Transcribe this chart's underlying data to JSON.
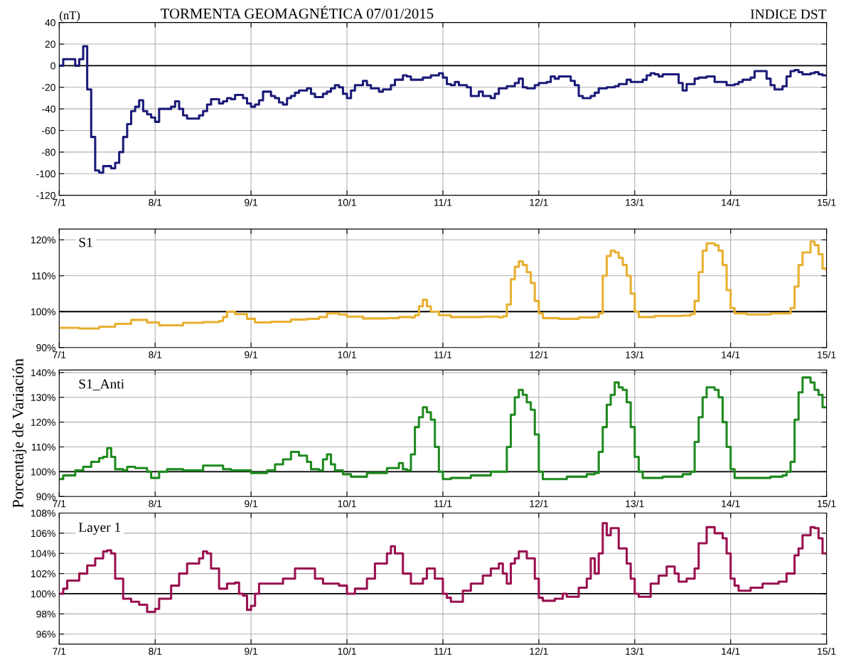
{
  "chart_data": [
    {
      "type": "step",
      "title": "TORMENTA GEOMAGNÉTICA 07/01/2015",
      "subtitle": "INDICE DST",
      "ylabel": "(nT)",
      "grid": true,
      "xlim": [
        "2015-01-07T00:00",
        "2015-01-15T00:00"
      ],
      "ylim": [
        -120,
        40
      ],
      "xticks": [
        {
          "value": "2015-01-07",
          "label": "7/1"
        },
        {
          "value": "2015-01-08",
          "label": "8/1"
        },
        {
          "value": "2015-01-09",
          "label": "9/1"
        },
        {
          "value": "2015-01-10",
          "label": "10/1"
        },
        {
          "value": "2015-01-11",
          "label": "11/1"
        },
        {
          "value": "2015-01-12",
          "label": "12/1"
        },
        {
          "value": "2015-01-13",
          "label": "13/1"
        },
        {
          "value": "2015-01-14",
          "label": "14/1"
        },
        {
          "value": "2015-01-15",
          "label": "15/1"
        }
      ],
      "yticks": [
        -120,
        -100,
        -80,
        -60,
        -40,
        -20,
        0,
        20,
        40
      ],
      "ref_lines": [
        {
          "axis": "y",
          "value": 0,
          "color": "#000000"
        }
      ],
      "series": [
        {
          "color": "#1a1a78",
          "x": [
            "2015-01-07T00:00",
            "2015-01-07T01:00",
            "2015-01-07T04:00",
            "2015-01-07T05:00",
            "2015-01-07T06:00",
            "2015-01-07T07:00",
            "2015-01-07T08:00",
            "2015-01-07T09:00",
            "2015-01-07T10:00",
            "2015-01-07T11:00",
            "2015-01-07T13:00",
            "2015-01-07T14:00",
            "2015-01-07T15:00",
            "2015-01-07T16:00",
            "2015-01-07T17:00",
            "2015-01-07T18:00",
            "2015-01-07T19:00",
            "2015-01-07T20:00",
            "2015-01-07T21:00",
            "2015-01-07T22:00",
            "2015-01-07T23:00",
            "2015-01-08T00:00",
            "2015-01-08T01:00",
            "2015-01-08T04:00",
            "2015-01-08T05:00",
            "2015-01-08T06:00",
            "2015-01-08T07:00",
            "2015-01-08T08:00",
            "2015-01-08T11:00",
            "2015-01-08T12:00",
            "2015-01-08T13:00",
            "2015-01-08T14:00",
            "2015-01-08T16:00",
            "2015-01-08T17:00",
            "2015-01-08T18:00",
            "2015-01-08T19:00",
            "2015-01-08T20:00",
            "2015-01-08T22:00",
            "2015-01-08T23:00",
            "2015-01-09T00:00",
            "2015-01-09T01:00",
            "2015-01-09T02:00",
            "2015-01-09T03:00",
            "2015-01-09T05:00",
            "2015-01-09T06:00",
            "2015-01-09T07:00",
            "2015-01-09T08:00",
            "2015-01-09T09:00",
            "2015-01-09T10:00",
            "2015-01-09T11:00",
            "2015-01-09T12:00",
            "2015-01-09T14:00",
            "2015-01-09T15:00",
            "2015-01-09T16:00",
            "2015-01-09T18:00",
            "2015-01-09T19:00",
            "2015-01-09T20:00",
            "2015-01-09T21:00",
            "2015-01-09T22:00",
            "2015-01-09T23:00",
            "2015-01-10T00:00",
            "2015-01-10T01:00",
            "2015-01-10T02:00",
            "2015-01-10T04:00",
            "2015-01-10T05:00",
            "2015-01-10T06:00",
            "2015-01-10T08:00",
            "2015-01-10T09:00",
            "2015-01-10T11:00",
            "2015-01-10T12:00",
            "2015-01-10T14:00",
            "2015-01-10T15:00",
            "2015-01-10T16:00",
            "2015-01-10T19:00",
            "2015-01-10T21:00",
            "2015-01-10T23:00",
            "2015-01-11T00:00",
            "2015-01-11T01:00",
            "2015-01-11T02:00",
            "2015-01-11T03:00",
            "2015-01-11T04:00",
            "2015-01-11T06:00",
            "2015-01-11T07:00",
            "2015-01-11T09:00",
            "2015-01-11T10:00",
            "2015-01-11T12:00",
            "2015-01-11T13:00",
            "2015-01-11T14:00",
            "2015-01-11T16:00",
            "2015-01-11T18:00",
            "2015-01-11T19:00",
            "2015-01-11T20:00",
            "2015-01-11T21:00",
            "2015-01-11T23:00",
            "2015-01-12T00:00",
            "2015-01-12T02:00",
            "2015-01-12T03:00",
            "2015-01-12T04:00",
            "2015-01-12T05:00",
            "2015-01-12T08:00",
            "2015-01-12T09:00",
            "2015-01-12T10:00",
            "2015-01-12T11:00",
            "2015-01-12T13:00",
            "2015-01-12T14:00",
            "2015-01-12T15:00",
            "2015-01-12T17:00",
            "2015-01-12T19:00",
            "2015-01-12T20:00",
            "2015-01-12T22:00",
            "2015-01-12T23:00",
            "2015-01-13T02:00",
            "2015-01-13T03:00",
            "2015-01-13T04:00",
            "2015-01-13T05:00",
            "2015-01-13T06:00",
            "2015-01-13T07:00",
            "2015-01-13T10:00",
            "2015-01-13T11:00",
            "2015-01-13T12:00",
            "2015-01-13T13:00",
            "2015-01-13T15:00",
            "2015-01-13T16:00",
            "2015-01-13T17:00",
            "2015-01-13T18:00",
            "2015-01-13T20:00",
            "2015-01-13T22:00",
            "2015-01-13T23:00",
            "2015-01-14T01:00",
            "2015-01-14T02:00",
            "2015-01-14T03:00",
            "2015-01-14T05:00",
            "2015-01-14T06:00",
            "2015-01-14T08:00",
            "2015-01-14T09:00",
            "2015-01-14T10:00",
            "2015-01-14T11:00",
            "2015-01-14T13:00",
            "2015-01-14T14:00",
            "2015-01-14T15:00",
            "2015-01-14T16:00",
            "2015-01-14T17:00",
            "2015-01-14T18:00",
            "2015-01-14T20:00",
            "2015-01-14T21:00",
            "2015-01-14T22:00",
            "2015-01-14T23:00",
            "2015-01-15T00:00"
          ],
          "values": [
            0,
            6,
            0,
            6,
            18,
            -22,
            -66,
            -97,
            -99,
            -93,
            -95,
            -90,
            -80,
            -66,
            -54,
            -42,
            -38,
            -32,
            -42,
            -45,
            -48,
            -52,
            -40,
            -38,
            -33,
            -40,
            -46,
            -49,
            -46,
            -42,
            -36,
            -31,
            -35,
            -33,
            -30,
            -31,
            -27,
            -30,
            -35,
            -38,
            -36,
            -32,
            -24,
            -28,
            -30,
            -34,
            -36,
            -30,
            -28,
            -25,
            -23,
            -21,
            -26,
            -29,
            -26,
            -24,
            -21,
            -18,
            -20,
            -26,
            -30,
            -23,
            -18,
            -14,
            -18,
            -21,
            -24,
            -22,
            -18,
            -13,
            -9,
            -10,
            -13,
            -11,
            -9,
            -7,
            -11,
            -17,
            -18,
            -15,
            -18,
            -20,
            -28,
            -24,
            -28,
            -30,
            -26,
            -21,
            -19,
            -16,
            -12,
            -20,
            -21,
            -18,
            -16,
            -15,
            -10,
            -12,
            -10,
            -14,
            -18,
            -28,
            -30,
            -28,
            -25,
            -21,
            -20,
            -19,
            -17,
            -13,
            -15,
            -13,
            -9,
            -7,
            -8,
            -10,
            -8,
            -8,
            -16,
            -23,
            -17,
            -12,
            -11,
            -11,
            -10,
            -15,
            -15,
            -18,
            -17,
            -15,
            -13,
            -11,
            -5,
            -5,
            -12,
            -18,
            -22,
            -19,
            -10,
            -5,
            -4,
            -6,
            -8,
            -7,
            -6,
            -8,
            -9,
            -9
          ]
        }
      ]
    },
    {
      "type": "step",
      "title": "S1",
      "grid": true,
      "xlim": [
        "2015-01-07T00:00",
        "2015-01-15T00:00"
      ],
      "ylim": [
        90,
        123
      ],
      "xticks": [
        {
          "value": "2015-01-07",
          "label": "7/1"
        },
        {
          "value": "2015-01-08",
          "label": "8/1"
        },
        {
          "value": "2015-01-09",
          "label": "9/1"
        },
        {
          "value": "2015-01-10",
          "label": "10/1"
        },
        {
          "value": "2015-01-11",
          "label": "11/1"
        },
        {
          "value": "2015-01-12",
          "label": "12/1"
        },
        {
          "value": "2015-01-13",
          "label": "13/1"
        },
        {
          "value": "2015-01-14",
          "label": "14/1"
        },
        {
          "value": "2015-01-15",
          "label": "15/1"
        }
      ],
      "yticks": [
        {
          "value": 90,
          "label": "90%"
        },
        {
          "value": 100,
          "label": "100%"
        },
        {
          "value": 110,
          "label": "110%"
        },
        {
          "value": 120,
          "label": "120%"
        }
      ],
      "ref_lines": [
        {
          "axis": "y",
          "value": 100,
          "color": "#000000"
        }
      ],
      "series": [
        {
          "color": "#e8b030",
          "x": [
            "2015-01-07T00:00",
            "2015-01-07T05:00",
            "2015-01-07T10:00",
            "2015-01-07T14:00",
            "2015-01-07T18:00",
            "2015-01-07T22:00",
            "2015-01-08T01:00",
            "2015-01-08T07:00",
            "2015-01-08T12:00",
            "2015-01-08T16:00",
            "2015-01-08T17:00",
            "2015-01-08T18:00",
            "2015-01-08T20:00",
            "2015-01-08T23:00",
            "2015-01-09T01:00",
            "2015-01-09T05:00",
            "2015-01-09T10:00",
            "2015-01-09T14:00",
            "2015-01-09T17:00",
            "2015-01-09T19:00",
            "2015-01-09T22:00",
            "2015-01-10T00:00",
            "2015-01-10T04:00",
            "2015-01-10T10:00",
            "2015-01-10T13:00",
            "2015-01-10T16:00",
            "2015-01-10T17:00",
            "2015-01-10T18:00",
            "2015-01-10T19:00",
            "2015-01-10T20:00",
            "2015-01-10T21:00",
            "2015-01-10T23:00",
            "2015-01-11T02:00",
            "2015-01-11T10:00",
            "2015-01-11T14:00",
            "2015-01-11T15:00",
            "2015-01-11T16:00",
            "2015-01-11T17:00",
            "2015-01-11T18:00",
            "2015-01-11T19:00",
            "2015-01-11T20:00",
            "2015-01-11T21:00",
            "2015-01-11T22:00",
            "2015-01-11T23:00",
            "2015-01-12T00:00",
            "2015-01-12T01:00",
            "2015-01-12T05:00",
            "2015-01-12T10:00",
            "2015-01-12T14:00",
            "2015-01-12T15:00",
            "2015-01-12T16:00",
            "2015-01-12T17:00",
            "2015-01-12T18:00",
            "2015-01-12T19:00",
            "2015-01-12T20:00",
            "2015-01-12T21:00",
            "2015-01-12T22:00",
            "2015-01-12T23:00",
            "2015-01-13T00:00",
            "2015-01-13T01:00",
            "2015-01-13T05:00",
            "2015-01-13T12:00",
            "2015-01-13T14:00",
            "2015-01-13T15:00",
            "2015-01-13T16:00",
            "2015-01-13T17:00",
            "2015-01-13T18:00",
            "2015-01-13T20:00",
            "2015-01-13T21:00",
            "2015-01-13T22:00",
            "2015-01-13T23:00",
            "2015-01-14T00:00",
            "2015-01-14T01:00",
            "2015-01-14T04:00",
            "2015-01-14T10:00",
            "2015-01-14T14:00",
            "2015-01-14T15:00",
            "2015-01-14T16:00",
            "2015-01-14T17:00",
            "2015-01-14T18:00",
            "2015-01-14T20:00",
            "2015-01-14T21:00",
            "2015-01-14T22:00",
            "2015-01-14T23:00",
            "2015-01-15T00:00"
          ],
          "values": [
            95.5,
            95.3,
            95.8,
            96.6,
            97.7,
            97.0,
            96.2,
            96.9,
            97.1,
            97.4,
            98.5,
            100,
            99.3,
            98.0,
            97.0,
            97.2,
            97.8,
            98.0,
            98.5,
            99.5,
            99.2,
            98.6,
            98.1,
            98.2,
            98.5,
            98.4,
            99.0,
            101.5,
            103.3,
            101.5,
            100.0,
            99.0,
            98.5,
            98.6,
            98.4,
            98.7,
            102,
            109,
            112.5,
            114,
            113,
            111,
            108,
            103,
            99.5,
            98.2,
            98.0,
            98.4,
            98.5,
            99.5,
            110,
            115.5,
            117,
            116.5,
            115,
            113,
            110,
            105,
            100,
            98.5,
            98.8,
            98.9,
            99.3,
            103,
            111,
            117,
            119,
            118.5,
            117,
            113,
            106,
            101,
            99.5,
            99.2,
            99.5,
            99.5,
            101,
            107,
            113,
            116.5,
            119.5,
            118.5,
            116,
            112,
            111.5
          ]
        }
      ]
    },
    {
      "type": "step",
      "title": "S1_Anti",
      "ylabel": "Porcentaje de Variación",
      "grid": true,
      "xlim": [
        "2015-01-07T00:00",
        "2015-01-15T00:00"
      ],
      "ylim": [
        90,
        141
      ],
      "xticks": [
        {
          "value": "2015-01-07",
          "label": "7/1"
        },
        {
          "value": "2015-01-08",
          "label": "8/1"
        },
        {
          "value": "2015-01-09",
          "label": "9/1"
        },
        {
          "value": "2015-01-10",
          "label": "10/1"
        },
        {
          "value": "2015-01-11",
          "label": "11/1"
        },
        {
          "value": "2015-01-12",
          "label": "12/1"
        },
        {
          "value": "2015-01-13",
          "label": "13/1"
        },
        {
          "value": "2015-01-14",
          "label": "14/1"
        },
        {
          "value": "2015-01-15",
          "label": "15/1"
        }
      ],
      "yticks": [
        {
          "value": 90,
          "label": "90%"
        },
        {
          "value": 100,
          "label": "100%"
        },
        {
          "value": 110,
          "label": "110%"
        },
        {
          "value": 120,
          "label": "120%"
        },
        {
          "value": 130,
          "label": "130%"
        },
        {
          "value": 140,
          "label": "140%"
        }
      ],
      "ref_lines": [
        {
          "axis": "y",
          "value": 100,
          "color": "#000000"
        }
      ],
      "series": [
        {
          "color": "#1e8a1e",
          "x": [
            "2015-01-07T00:00",
            "2015-01-07T01:00",
            "2015-01-07T04:00",
            "2015-01-07T06:00",
            "2015-01-07T08:00",
            "2015-01-07T10:00",
            "2015-01-07T11:00",
            "2015-01-07T12:00",
            "2015-01-07T13:00",
            "2015-01-07T14:00",
            "2015-01-07T16:00",
            "2015-01-07T17:00",
            "2015-01-07T19:00",
            "2015-01-07T22:00",
            "2015-01-07T23:00",
            "2015-01-08T00:00",
            "2015-01-08T01:00",
            "2015-01-08T03:00",
            "2015-01-08T07:00",
            "2015-01-08T12:00",
            "2015-01-08T14:00",
            "2015-01-08T17:00",
            "2015-01-08T19:00",
            "2015-01-09T00:00",
            "2015-01-09T04:00",
            "2015-01-09T06:00",
            "2015-01-09T08:00",
            "2015-01-09T10:00",
            "2015-01-09T12:00",
            "2015-01-09T14:00",
            "2015-01-09T15:00",
            "2015-01-09T17:00",
            "2015-01-09T18:00",
            "2015-01-09T19:00",
            "2015-01-09T20:00",
            "2015-01-09T21:00",
            "2015-01-09T23:00",
            "2015-01-10T01:00",
            "2015-01-10T05:00",
            "2015-01-10T10:00",
            "2015-01-10T13:00",
            "2015-01-10T14:00",
            "2015-01-10T15:00",
            "2015-01-10T16:00",
            "2015-01-10T17:00",
            "2015-01-10T18:00",
            "2015-01-10T19:00",
            "2015-01-10T20:00",
            "2015-01-10T21:00",
            "2015-01-10T22:00",
            "2015-01-10T23:00",
            "2015-01-11T00:00",
            "2015-01-11T02:00",
            "2015-01-11T07:00",
            "2015-01-11T12:00",
            "2015-01-11T15:00",
            "2015-01-11T16:00",
            "2015-01-11T17:00",
            "2015-01-11T18:00",
            "2015-01-11T19:00",
            "2015-01-11T20:00",
            "2015-01-11T21:00",
            "2015-01-11T22:00",
            "2015-01-11T23:00",
            "2015-01-12T00:00",
            "2015-01-12T01:00",
            "2015-01-12T03:00",
            "2015-01-12T07:00",
            "2015-01-12T12:00",
            "2015-01-12T14:00",
            "2015-01-12T15:00",
            "2015-01-12T16:00",
            "2015-01-12T17:00",
            "2015-01-12T18:00",
            "2015-01-12T19:00",
            "2015-01-12T20:00",
            "2015-01-12T21:00",
            "2015-01-12T22:00",
            "2015-01-12T23:00",
            "2015-01-13T00:00",
            "2015-01-13T01:00",
            "2015-01-13T02:00",
            "2015-01-13T07:00",
            "2015-01-13T12:00",
            "2015-01-13T14:00",
            "2015-01-13T15:00",
            "2015-01-13T16:00",
            "2015-01-13T17:00",
            "2015-01-13T18:00",
            "2015-01-13T20:00",
            "2015-01-13T21:00",
            "2015-01-13T22:00",
            "2015-01-13T23:00",
            "2015-01-14T00:00",
            "2015-01-14T01:00",
            "2015-01-14T05:00",
            "2015-01-14T10:00",
            "2015-01-14T13:00",
            "2015-01-14T14:00",
            "2015-01-14T15:00",
            "2015-01-14T16:00",
            "2015-01-14T17:00",
            "2015-01-14T18:00",
            "2015-01-14T20:00",
            "2015-01-14T21:00",
            "2015-01-14T22:00",
            "2015-01-14T23:00",
            "2015-01-15T00:00"
          ],
          "values": [
            97,
            98.5,
            100.5,
            102,
            104,
            105.5,
            106,
            109.5,
            106,
            101,
            100.5,
            102,
            101.5,
            100,
            97.5,
            97.5,
            100,
            101,
            100.5,
            102.5,
            102.5,
            101,
            100.5,
            99.5,
            100.5,
            103,
            105,
            108,
            106.5,
            104,
            101,
            100.5,
            105,
            107,
            103,
            100.5,
            99,
            98,
            99.5,
            101.5,
            103.5,
            101,
            100.5,
            107,
            118,
            122,
            126,
            124,
            121,
            110,
            100,
            97,
            97.5,
            98.5,
            100,
            100,
            110,
            123,
            130,
            133,
            131,
            128,
            125,
            115,
            100,
            97,
            97,
            98,
            99,
            99.5,
            108,
            118,
            127,
            131,
            136,
            134,
            133,
            128,
            118,
            106,
            100,
            97.5,
            98,
            99,
            100,
            112,
            122,
            130,
            134,
            133,
            130,
            120,
            110,
            101,
            97.5,
            97.5,
            98,
            98.5,
            100,
            104,
            121,
            132,
            138,
            136,
            133,
            131,
            126,
            126
          ]
        }
      ]
    },
    {
      "type": "step",
      "title": "Layer 1",
      "grid": true,
      "xlim": [
        "2015-01-07T00:00",
        "2015-01-15T00:00"
      ],
      "ylim": [
        95,
        108
      ],
      "xticks": [
        {
          "value": "2015-01-07",
          "label": "7/1"
        },
        {
          "value": "2015-01-08",
          "label": "8/1"
        },
        {
          "value": "2015-01-09",
          "label": "9/1"
        },
        {
          "value": "2015-01-10",
          "label": "10/1"
        },
        {
          "value": "2015-01-11",
          "label": "11/1"
        },
        {
          "value": "2015-01-12",
          "label": "12/1"
        },
        {
          "value": "2015-01-13",
          "label": "13/1"
        },
        {
          "value": "2015-01-14",
          "label": "14/1"
        },
        {
          "value": "2015-01-15",
          "label": "15/1"
        }
      ],
      "yticks": [
        {
          "value": 96,
          "label": "96%"
        },
        {
          "value": 98,
          "label": "98%"
        },
        {
          "value": 100,
          "label": "100%"
        },
        {
          "value": 102,
          "label": "102%"
        },
        {
          "value": 104,
          "label": "104%"
        },
        {
          "value": 106,
          "label": "106%"
        },
        {
          "value": 108,
          "label": "108%"
        }
      ],
      "ref_lines": [
        {
          "axis": "y",
          "value": 100,
          "color": "#000000"
        }
      ],
      "series": [
        {
          "color": "#9a1050",
          "x": [
            "2015-01-07T00:00",
            "2015-01-07T01:00",
            "2015-01-07T02:00",
            "2015-01-07T05:00",
            "2015-01-07T07:00",
            "2015-01-07T09:00",
            "2015-01-07T11:00",
            "2015-01-07T12:00",
            "2015-01-07T13:00",
            "2015-01-07T14:00",
            "2015-01-07T16:00",
            "2015-01-07T18:00",
            "2015-01-07T20:00",
            "2015-01-07T22:00",
            "2015-01-08T00:00",
            "2015-01-08T01:00",
            "2015-01-08T04:00",
            "2015-01-08T06:00",
            "2015-01-08T08:00",
            "2015-01-08T11:00",
            "2015-01-08T12:00",
            "2015-01-08T13:00",
            "2015-01-08T14:00",
            "2015-01-08T16:00",
            "2015-01-08T18:00",
            "2015-01-08T20:00",
            "2015-01-08T21:00",
            "2015-01-08T22:00",
            "2015-01-08T23:00",
            "2015-01-09T00:00",
            "2015-01-09T01:00",
            "2015-01-09T02:00",
            "2015-01-09T05:00",
            "2015-01-09T08:00",
            "2015-01-09T11:00",
            "2015-01-09T13:00",
            "2015-01-09T16:00",
            "2015-01-09T18:00",
            "2015-01-09T20:00",
            "2015-01-09T22:00",
            "2015-01-10T00:00",
            "2015-01-10T02:00",
            "2015-01-10T05:00",
            "2015-01-10T07:00",
            "2015-01-10T10:00",
            "2015-01-10T11:00",
            "2015-01-10T12:00",
            "2015-01-10T14:00",
            "2015-01-10T16:00",
            "2015-01-10T19:00",
            "2015-01-10T20:00",
            "2015-01-10T22:00",
            "2015-01-11T00:00",
            "2015-01-11T01:00",
            "2015-01-11T02:00",
            "2015-01-11T05:00",
            "2015-01-11T07:00",
            "2015-01-11T10:00",
            "2015-01-11T12:00",
            "2015-01-11T14:00",
            "2015-01-11T15:00",
            "2015-01-11T16:00",
            "2015-01-11T17:00",
            "2015-01-11T18:00",
            "2015-01-11T19:00",
            "2015-01-11T21:00",
            "2015-01-11T23:00",
            "2015-01-12T00:00",
            "2015-01-12T01:00",
            "2015-01-12T04:00",
            "2015-01-12T06:00",
            "2015-01-12T07:00",
            "2015-01-12T10:00",
            "2015-01-12T12:00",
            "2015-01-12T13:00",
            "2015-01-12T14:00",
            "2015-01-12T15:00",
            "2015-01-12T16:00",
            "2015-01-12T17:00",
            "2015-01-12T18:00",
            "2015-01-12T19:00",
            "2015-01-12T20:00",
            "2015-01-12T22:00",
            "2015-01-12T23:00",
            "2015-01-13T00:00",
            "2015-01-13T01:00",
            "2015-01-13T04:00",
            "2015-01-13T06:00",
            "2015-01-13T08:00",
            "2015-01-13T10:00",
            "2015-01-13T11:00",
            "2015-01-13T13:00",
            "2015-01-13T15:00",
            "2015-01-13T16:00",
            "2015-01-13T18:00",
            "2015-01-13T20:00",
            "2015-01-13T22:00",
            "2015-01-13T23:00",
            "2015-01-14T00:00",
            "2015-01-14T01:00",
            "2015-01-14T02:00",
            "2015-01-14T05:00",
            "2015-01-14T08:00",
            "2015-01-14T12:00",
            "2015-01-14T14:00",
            "2015-01-14T16:00",
            "2015-01-14T17:00",
            "2015-01-14T18:00",
            "2015-01-14T20:00",
            "2015-01-14T21:00",
            "2015-01-14T22:00",
            "2015-01-14T23:00",
            "2015-01-15T00:00"
          ],
          "values": [
            100,
            100.5,
            101.3,
            102,
            102.8,
            103.5,
            104.2,
            104.3,
            104,
            101.5,
            99.5,
            99.2,
            98.9,
            98.2,
            98.5,
            99.5,
            100.8,
            102,
            103,
            103.5,
            104.2,
            104,
            102.5,
            100.5,
            101,
            101.1,
            100,
            99.8,
            98.4,
            98.8,
            100,
            101,
            101,
            101.5,
            102.5,
            102.5,
            101.5,
            101,
            101,
            100.8,
            100,
            100.5,
            101.5,
            103,
            104,
            104.7,
            104,
            102,
            101,
            101.5,
            102.5,
            101.5,
            100,
            99.6,
            99.2,
            100.3,
            101,
            101.8,
            102.5,
            103,
            102,
            101,
            103,
            103.5,
            104.2,
            103.5,
            101.5,
            99.6,
            99.3,
            99.5,
            100,
            99.7,
            100.6,
            101.5,
            103.5,
            102,
            104,
            107,
            105.8,
            106.5,
            106.5,
            104.5,
            103,
            101.5,
            100,
            99.7,
            101,
            101.8,
            102.7,
            102,
            101.2,
            101.5,
            102.5,
            105,
            106.6,
            106,
            105.5,
            104,
            101.5,
            100.8,
            100.3,
            100.6,
            101,
            101.2,
            102,
            103.8,
            104.5,
            105.8,
            106.6,
            106.5,
            105.5,
            104,
            104
          ]
        }
      ]
    }
  ]
}
